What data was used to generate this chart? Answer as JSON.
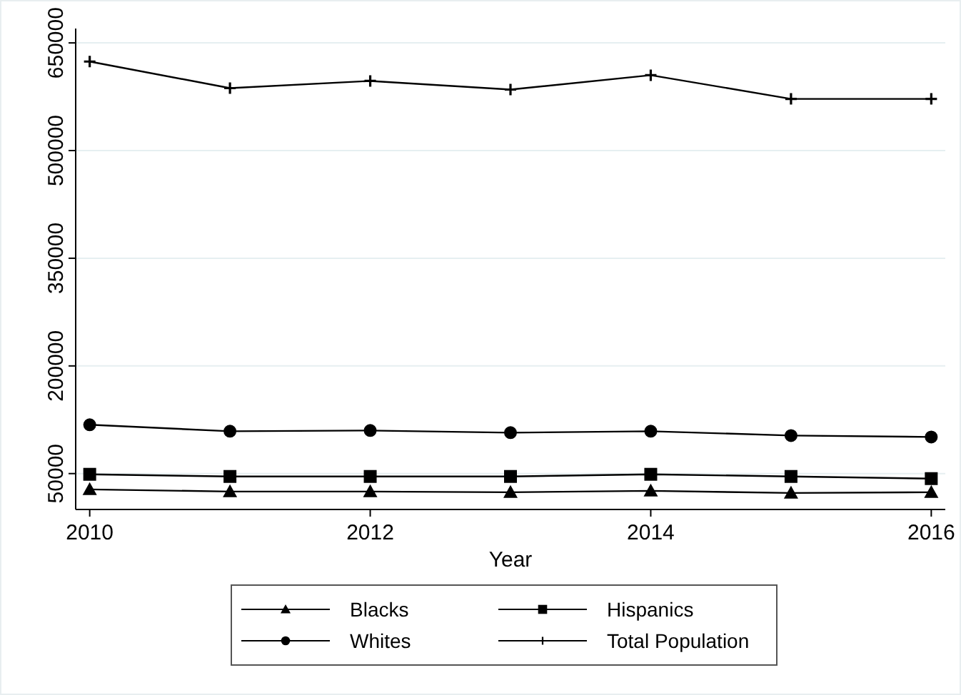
{
  "chart_data": {
    "type": "line",
    "xlabel": "Year",
    "x": [
      2010,
      2011,
      2012,
      2013,
      2014,
      2015,
      2016
    ],
    "xlim": [
      2009.9,
      2016.1
    ],
    "xticks": [
      2010,
      2012,
      2014,
      2016
    ],
    "ylim": [
      0,
      670000
    ],
    "yticks": [
      50000,
      200000,
      350000,
      500000,
      650000
    ],
    "grid": "y",
    "legend": "bottom",
    "line_style": "solid",
    "series": [
      {
        "name": "Blacks",
        "color": "#000000",
        "marker": "triangle",
        "values": [
          28000,
          25000,
          25000,
          24000,
          26000,
          23000,
          24000
        ]
      },
      {
        "name": "Hispanics",
        "color": "#000000",
        "marker": "square",
        "values": [
          49000,
          46000,
          46000,
          46000,
          49000,
          46000,
          43000
        ]
      },
      {
        "name": "Whites",
        "color": "#000000",
        "marker": "circle",
        "values": [
          118000,
          109000,
          110000,
          107000,
          109000,
          103000,
          101000
        ]
      },
      {
        "name": "Total Population",
        "color": "#000000",
        "marker": "cross",
        "values": [
          624000,
          587000,
          597000,
          585000,
          605000,
          572000,
          572000
        ]
      }
    ]
  }
}
